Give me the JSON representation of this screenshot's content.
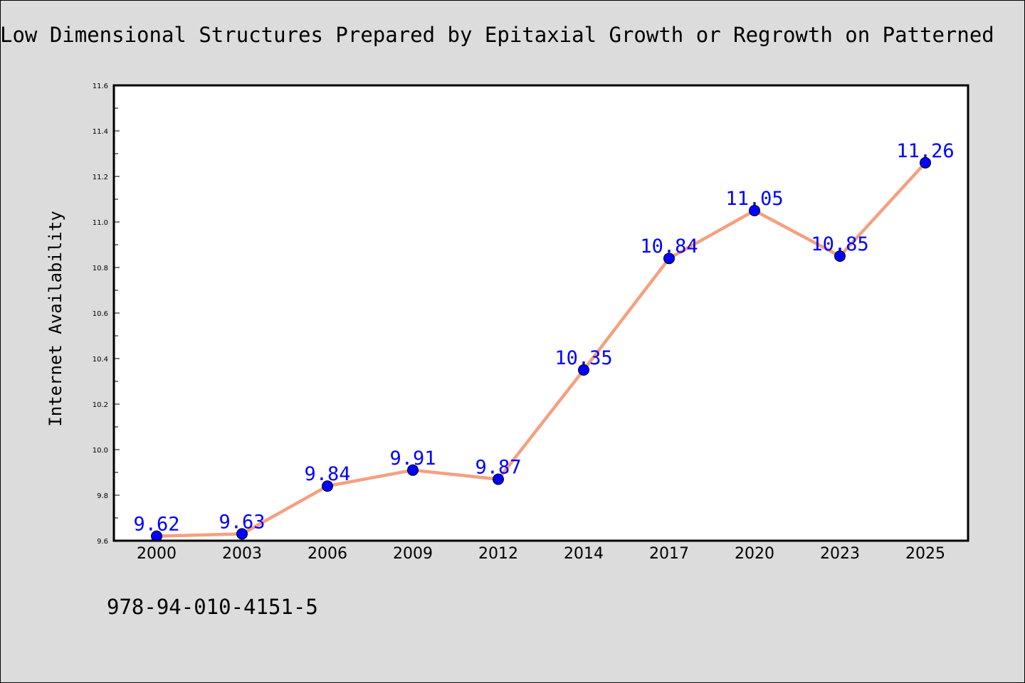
{
  "chart_data": {
    "type": "line",
    "title": "Low Dimensional Structures Prepared by Epitaxial Growth or Regrowth on Patterned",
    "xlabel": "",
    "ylabel": "Internet Availability",
    "categories": [
      "2000",
      "2003",
      "2006",
      "2009",
      "2012",
      "2014",
      "2017",
      "2020",
      "2023",
      "2025"
    ],
    "values": [
      9.62,
      9.63,
      9.84,
      9.91,
      9.87,
      10.35,
      10.84,
      11.05,
      10.85,
      11.26
    ],
    "data_labels": [
      "9.62",
      "9.63",
      "9.84",
      "9.91",
      "9.87",
      "10.35",
      "10.84",
      "11.05",
      "10.85",
      "11.26"
    ],
    "ylim": [
      9.6,
      11.6
    ],
    "yticks": [
      "9.6",
      "9.8",
      "10.0",
      "10.2",
      "10.4",
      "10.6",
      "10.8",
      "11.0",
      "11.2",
      "11.4",
      "11.6"
    ],
    "grid": false,
    "legend": "none",
    "line_color": "#f4a080",
    "marker_color": "#0000ff",
    "label_color": "#0000ff",
    "plot_background": "#ffffff",
    "figure_background": "#dcdcdc"
  },
  "footer": {
    "isbn": "978-94-010-4151-5"
  }
}
